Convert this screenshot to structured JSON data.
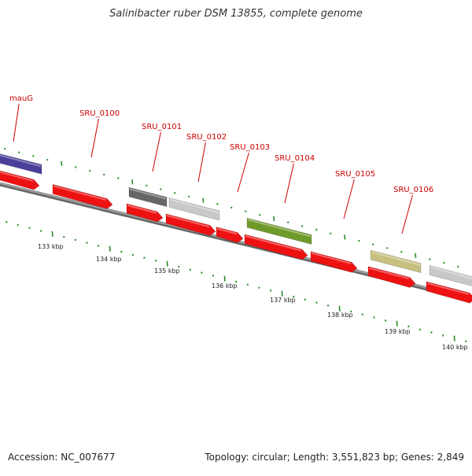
{
  "title": "Salinibacter ruber DSM 13855, complete genome",
  "accession": "Accession: NC_007677",
  "summary": "Topology: circular; Length: 3,551,823 bp; Genes: 2,849",
  "colors": {
    "label": "#cc0000",
    "cds": "#ee1111",
    "backbone": "#888888",
    "tick": "#2a8a2a"
  },
  "gene_labels": [
    "mauG",
    "SRU_0100",
    "SRU_0101",
    "SRU_0102",
    "SRU_0103",
    "SRU_0104",
    "SRU_0105",
    "SRU_0106"
  ],
  "cog_blocks": [
    {
      "gene": "mauG",
      "color": "#4a3f9a"
    },
    {
      "gene": "SRU_0101",
      "color": "#666666"
    },
    {
      "gene": "SRU_0102",
      "color": "#c8c8c8"
    },
    {
      "gene": "SRU_0104",
      "color": "#6e9a2a"
    },
    {
      "gene": "SRU_0106",
      "color": "#c8c080"
    },
    {
      "gene": "next",
      "color": "#c8c8c8"
    }
  ],
  "kbp_labels": [
    "133 kbp",
    "134 kbp",
    "135 kbp",
    "136 kbp",
    "137 kbp",
    "138 kbp",
    "139 kbp",
    "140 kbp"
  ]
}
